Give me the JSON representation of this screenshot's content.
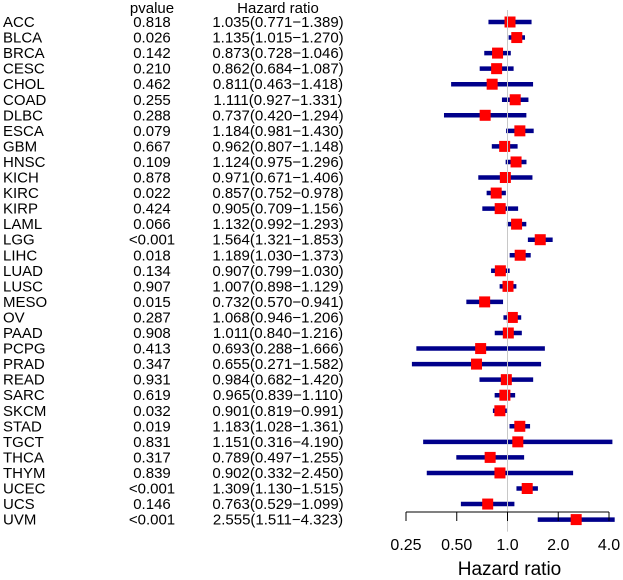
{
  "chart_data": {
    "type": "forest",
    "headers": {
      "pvalue": "pvalue",
      "hr": "Hazard ratio"
    },
    "xlabel": "Hazard ratio",
    "x_scale": "log2",
    "xlim": [
      0.25,
      4.0
    ],
    "reference_line": 1.0,
    "xticks": [
      "0.25",
      "0.50",
      "1.0",
      "2.0",
      "4.0"
    ],
    "rows": [
      {
        "label": "ACC",
        "pvalue": "0.818",
        "hr_text": "1.035(0.771−1.389)",
        "hr": 1.035,
        "lo": 0.771,
        "hi": 1.389
      },
      {
        "label": "BLCA",
        "pvalue": "0.026",
        "hr_text": "1.135(1.015−1.270)",
        "hr": 1.135,
        "lo": 1.015,
        "hi": 1.27
      },
      {
        "label": "BRCA",
        "pvalue": "0.142",
        "hr_text": "0.873(0.728−1.046)",
        "hr": 0.873,
        "lo": 0.728,
        "hi": 1.046
      },
      {
        "label": "CESC",
        "pvalue": "0.210",
        "hr_text": "0.862(0.684−1.087)",
        "hr": 0.862,
        "lo": 0.684,
        "hi": 1.087
      },
      {
        "label": "CHOL",
        "pvalue": "0.462",
        "hr_text": "0.811(0.463−1.418)",
        "hr": 0.811,
        "lo": 0.463,
        "hi": 1.418
      },
      {
        "label": "COAD",
        "pvalue": "0.255",
        "hr_text": "1.111(0.927−1.331)",
        "hr": 1.111,
        "lo": 0.927,
        "hi": 1.331
      },
      {
        "label": "DLBC",
        "pvalue": "0.288",
        "hr_text": "0.737(0.420−1.294)",
        "hr": 0.737,
        "lo": 0.42,
        "hi": 1.294
      },
      {
        "label": "ESCA",
        "pvalue": "0.079",
        "hr_text": "1.184(0.981−1.430)",
        "hr": 1.184,
        "lo": 0.981,
        "hi": 1.43
      },
      {
        "label": "GBM",
        "pvalue": "0.667",
        "hr_text": "0.962(0.807−1.148)",
        "hr": 0.962,
        "lo": 0.807,
        "hi": 1.148
      },
      {
        "label": "HNSC",
        "pvalue": "0.109",
        "hr_text": "1.124(0.975−1.296)",
        "hr": 1.124,
        "lo": 0.975,
        "hi": 1.296
      },
      {
        "label": "KICH",
        "pvalue": "0.878",
        "hr_text": "0.971(0.671−1.406)",
        "hr": 0.971,
        "lo": 0.671,
        "hi": 1.406
      },
      {
        "label": "KIRC",
        "pvalue": "0.022",
        "hr_text": "0.857(0.752−0.978)",
        "hr": 0.857,
        "lo": 0.752,
        "hi": 0.978
      },
      {
        "label": "KIRP",
        "pvalue": "0.424",
        "hr_text": "0.905(0.709−1.156)",
        "hr": 0.905,
        "lo": 0.709,
        "hi": 1.156
      },
      {
        "label": "LAML",
        "pvalue": "0.066",
        "hr_text": "1.132(0.992−1.293)",
        "hr": 1.132,
        "lo": 0.992,
        "hi": 1.293
      },
      {
        "label": "LGG",
        "pvalue": "<0.001",
        "hr_text": "1.564(1.321−1.853)",
        "hr": 1.564,
        "lo": 1.321,
        "hi": 1.853
      },
      {
        "label": "LIHC",
        "pvalue": "0.018",
        "hr_text": "1.189(1.030−1.373)",
        "hr": 1.189,
        "lo": 1.03,
        "hi": 1.373
      },
      {
        "label": "LUAD",
        "pvalue": "0.134",
        "hr_text": "0.907(0.799−1.030)",
        "hr": 0.907,
        "lo": 0.799,
        "hi": 1.03
      },
      {
        "label": "LUSC",
        "pvalue": "0.907",
        "hr_text": "1.007(0.898−1.129)",
        "hr": 1.007,
        "lo": 0.898,
        "hi": 1.129
      },
      {
        "label": "MESO",
        "pvalue": "0.015",
        "hr_text": "0.732(0.570−0.941)",
        "hr": 0.732,
        "lo": 0.57,
        "hi": 0.941
      },
      {
        "label": "OV",
        "pvalue": "0.287",
        "hr_text": "1.068(0.946−1.206)",
        "hr": 1.068,
        "lo": 0.946,
        "hi": 1.206
      },
      {
        "label": "PAAD",
        "pvalue": "0.908",
        "hr_text": "1.011(0.840−1.216)",
        "hr": 1.011,
        "lo": 0.84,
        "hi": 1.216
      },
      {
        "label": "PCPG",
        "pvalue": "0.413",
        "hr_text": "0.693(0.288−1.666)",
        "hr": 0.693,
        "lo": 0.288,
        "hi": 1.666
      },
      {
        "label": "PRAD",
        "pvalue": "0.347",
        "hr_text": "0.655(0.271−1.582)",
        "hr": 0.655,
        "lo": 0.271,
        "hi": 1.582
      },
      {
        "label": "READ",
        "pvalue": "0.931",
        "hr_text": "0.984(0.682−1.420)",
        "hr": 0.984,
        "lo": 0.682,
        "hi": 1.42
      },
      {
        "label": "SARC",
        "pvalue": "0.619",
        "hr_text": "0.965(0.839−1.110)",
        "hr": 0.965,
        "lo": 0.839,
        "hi": 1.11
      },
      {
        "label": "SKCM",
        "pvalue": "0.032",
        "hr_text": "0.901(0.819−0.991)",
        "hr": 0.901,
        "lo": 0.819,
        "hi": 0.991
      },
      {
        "label": "STAD",
        "pvalue": "0.019",
        "hr_text": "1.183(1.028−1.361)",
        "hr": 1.183,
        "lo": 1.028,
        "hi": 1.361
      },
      {
        "label": "TGCT",
        "pvalue": "0.831",
        "hr_text": "1.151(0.316−4.190)",
        "hr": 1.151,
        "lo": 0.316,
        "hi": 4.19
      },
      {
        "label": "THCA",
        "pvalue": "0.317",
        "hr_text": "0.789(0.497−1.255)",
        "hr": 0.789,
        "lo": 0.497,
        "hi": 1.255
      },
      {
        "label": "THYM",
        "pvalue": "0.839",
        "hr_text": "0.902(0.332−2.450)",
        "hr": 0.902,
        "lo": 0.332,
        "hi": 2.45
      },
      {
        "label": "UCEC",
        "pvalue": "<0.001",
        "hr_text": "1.309(1.130−1.515)",
        "hr": 1.309,
        "lo": 1.13,
        "hi": 1.515
      },
      {
        "label": "UCS",
        "pvalue": "0.146",
        "hr_text": "0.763(0.529−1.099)",
        "hr": 0.763,
        "lo": 0.529,
        "hi": 1.099
      },
      {
        "label": "UVM",
        "pvalue": "<0.001",
        "hr_text": "2.555(1.511−4.323)",
        "hr": 2.555,
        "lo": 1.511,
        "hi": 4.323
      }
    ],
    "colors": {
      "ci_line": "#00008b",
      "point": "#ff0000",
      "reference": "#c8c8c8",
      "text": "#000000"
    }
  }
}
